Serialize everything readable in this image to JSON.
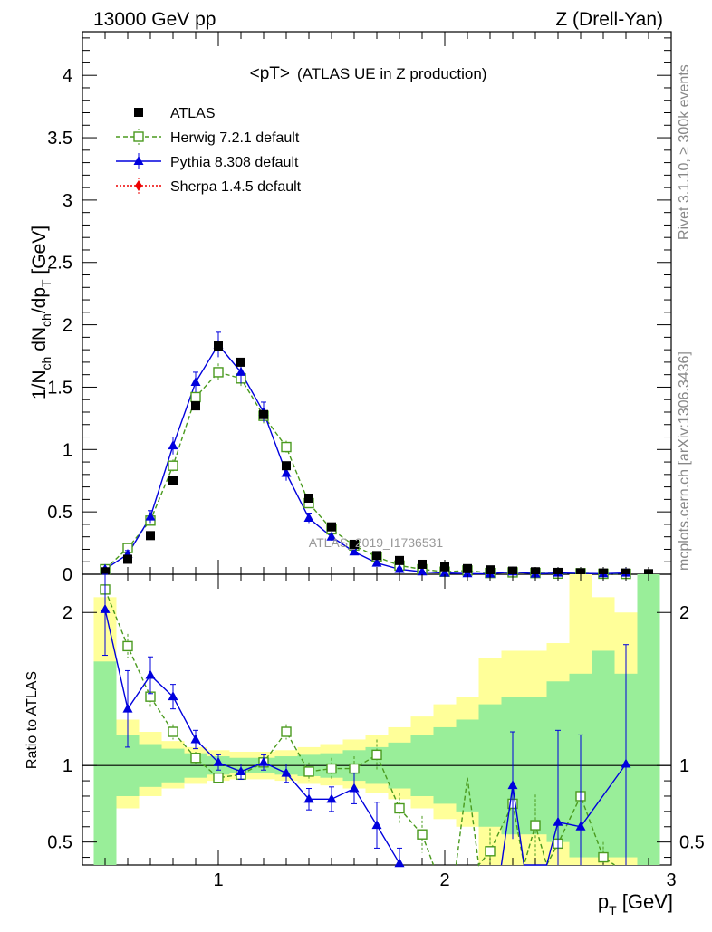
{
  "header": {
    "left": "13000 GeV pp",
    "right": "Z (Drell-Yan)"
  },
  "side": {
    "rivet": "Rivet 3.1.10, ≥ 300k events",
    "mcplots": "mcplots.cern.ch [arXiv:1306.3436]"
  },
  "chart_data": {
    "type": "line",
    "title_main": "<pT>",
    "title_sub": "(ATLAS UE in Z production)",
    "watermark": "ATLAS_2019_I1736531",
    "ylabel": "1/N_ch dN_ch/dp_T [GeV]",
    "xlabel": "p_T [GeV]",
    "ratio_ylabel": "Ratio to ATLAS",
    "xlim": [
      0.4,
      3.0
    ],
    "ylim": [
      0,
      4.35
    ],
    "ratio_ylim": [
      0.35,
      2.25
    ],
    "xticks": [
      "1",
      "2",
      "3"
    ],
    "yticks": [
      "0",
      "0.5",
      "1",
      "1.5",
      "2",
      "2.5",
      "3",
      "3.5",
      "4"
    ],
    "ratio_yticks": [
      "0.5",
      "1",
      "2"
    ],
    "legend": [
      {
        "name": "ATLAS",
        "color": "#000000",
        "marker": "square-filled",
        "line": "none"
      },
      {
        "name": "Herwig 7.2.1 default",
        "color": "#4a9a1e",
        "marker": "square-open",
        "line": "dashed"
      },
      {
        "name": "Pythia 8.308 default",
        "color": "#0000dd",
        "marker": "triangle",
        "line": "solid"
      },
      {
        "name": "Sherpa 1.4.5 default",
        "color": "#ee0000",
        "marker": "diamond",
        "line": "dotted"
      }
    ],
    "series": [
      {
        "name": "ATLAS",
        "x": [
          0.5,
          0.6,
          0.7,
          0.8,
          0.9,
          1.0,
          1.1,
          1.2,
          1.3,
          1.4,
          1.5,
          1.6,
          1.7,
          1.8,
          1.9,
          2.0,
          2.1,
          2.2,
          2.3,
          2.4,
          2.5,
          2.6,
          2.7,
          2.8,
          2.9
        ],
        "y": [
          0.02,
          0.12,
          0.31,
          0.75,
          1.35,
          1.83,
          1.7,
          1.28,
          0.87,
          0.61,
          0.38,
          0.24,
          0.15,
          0.11,
          0.08,
          0.06,
          0.045,
          0.035,
          0.025,
          0.02,
          0.015,
          0.012,
          0.01,
          0.01,
          0.005
        ]
      },
      {
        "name": "Herwig 7.2.1 default",
        "x": [
          0.5,
          0.6,
          0.7,
          0.8,
          0.9,
          1.0,
          1.1,
          1.2,
          1.3,
          1.4,
          1.5,
          1.6,
          1.7,
          1.8,
          1.9,
          2.0,
          2.1,
          2.2,
          2.3,
          2.4,
          2.5,
          2.6,
          2.7,
          2.8
        ],
        "y": [
          0.04,
          0.21,
          0.43,
          0.87,
          1.42,
          1.62,
          1.57,
          1.27,
          1.02,
          0.57,
          0.36,
          0.23,
          0.14,
          0.07,
          0.04,
          0.02,
          0.03,
          0.01,
          0.015,
          0.01,
          0.005,
          0.008,
          0.004,
          0.003
        ],
        "err": [
          0.01,
          0.03,
          0.04,
          0.05,
          0.06,
          0.07,
          0.07,
          0.06,
          0.05,
          0.04,
          0.03,
          0.02,
          0.02,
          0.01,
          0.01,
          0.01,
          0.01,
          0.01,
          0.01,
          0.01,
          0.005,
          0.005,
          0.004,
          0.003
        ]
      },
      {
        "name": "Pythia 8.308 default",
        "x": [
          0.5,
          0.6,
          0.7,
          0.8,
          0.9,
          1.0,
          1.1,
          1.2,
          1.3,
          1.4,
          1.5,
          1.6,
          1.7,
          1.8,
          1.9,
          2.0,
          2.1,
          2.2,
          2.3,
          2.4,
          2.5,
          2.6,
          2.7,
          2.8
        ],
        "y": [
          0.04,
          0.16,
          0.46,
          1.03,
          1.54,
          1.84,
          1.62,
          1.3,
          0.81,
          0.45,
          0.3,
          0.18,
          0.09,
          0.04,
          0.02,
          0.01,
          0.005,
          0.003,
          0.02,
          0.003,
          0.01,
          0.007,
          0.005,
          0.01
        ],
        "err": [
          0.01,
          0.03,
          0.05,
          0.07,
          0.08,
          0.1,
          0.09,
          0.08,
          0.06,
          0.04,
          0.03,
          0.02,
          0.01,
          0.01,
          0.005,
          0.005,
          0.003,
          0.002,
          0.01,
          0.002,
          0.005,
          0.004,
          0.003,
          0.005
        ]
      },
      {
        "name": "Sherpa 1.4.5 default",
        "x": [],
        "y": []
      }
    ],
    "ratio_series": [
      {
        "name": "Herwig 7.2.1 default",
        "x": [
          0.5,
          0.6,
          0.7,
          0.8,
          0.9,
          1.0,
          1.1,
          1.2,
          1.3,
          1.4,
          1.5,
          1.6,
          1.7,
          1.8,
          1.9,
          2.2,
          2.3,
          2.4,
          2.5,
          2.6,
          2.7
        ],
        "y": [
          2.15,
          1.78,
          1.45,
          1.22,
          1.05,
          0.92,
          0.94,
          1.02,
          1.22,
          0.96,
          0.98,
          0.98,
          1.07,
          0.72,
          0.55,
          0.44,
          0.75,
          0.61,
          0.49,
          0.8,
          0.4
        ],
        "err": [
          0.04,
          0.08,
          0.07,
          0.05,
          0.04,
          0.03,
          0.03,
          0.04,
          0.05,
          0.06,
          0.07,
          0.08,
          0.1,
          0.1,
          0.12,
          0.15,
          0.18,
          0.2,
          0.2,
          0.2,
          0.1
        ],
        "extra_lines": [
          [
            2.1,
            0.92
          ],
          [
            2.2,
            0.44
          ]
        ]
      },
      {
        "name": "Pythia 8.308 default",
        "x": [
          0.5,
          0.6,
          0.7,
          0.8,
          0.9,
          1.0,
          1.1,
          1.2,
          1.3,
          1.4,
          1.5,
          1.6,
          1.7,
          1.8
        ],
        "y": [
          2.02,
          1.37,
          1.59,
          1.45,
          1.17,
          1.02,
          0.96,
          1.02,
          0.95,
          0.78,
          0.78,
          0.85,
          0.61,
          0.36
        ],
        "err": [
          0.3,
          0.25,
          0.12,
          0.08,
          0.06,
          0.05,
          0.05,
          0.05,
          0.06,
          0.07,
          0.08,
          0.1,
          0.15,
          0.1
        ],
        "extra": {
          "x": [
            2.3,
            2.5,
            2.6,
            2.8
          ],
          "y": [
            0.87,
            0.63,
            0.6,
            1.01
          ],
          "err": [
            0.35,
            0.6,
            0.6,
            0.78
          ]
        }
      }
    ],
    "bands": {
      "x_edges": [
        0.45,
        0.55,
        0.65,
        0.75,
        0.85,
        0.95,
        1.05,
        1.15,
        1.25,
        1.35,
        1.45,
        1.55,
        1.65,
        1.75,
        1.85,
        1.95,
        2.05,
        2.15,
        2.25,
        2.35,
        2.45,
        2.55,
        2.65,
        2.75,
        2.85,
        2.95
      ],
      "green": [
        [
          0.35,
          1.68
        ],
        [
          0.8,
          1.2
        ],
        [
          0.86,
          1.14
        ],
        [
          0.89,
          1.11
        ],
        [
          0.92,
          1.08
        ],
        [
          0.94,
          1.06
        ],
        [
          0.95,
          1.05
        ],
        [
          0.95,
          1.05
        ],
        [
          0.94,
          1.06
        ],
        [
          0.93,
          1.07
        ],
        [
          0.92,
          1.08
        ],
        [
          0.9,
          1.1
        ],
        [
          0.88,
          1.12
        ],
        [
          0.85,
          1.15
        ],
        [
          0.8,
          1.2
        ],
        [
          0.75,
          1.25
        ],
        [
          0.7,
          1.3
        ],
        [
          0.6,
          1.4
        ],
        [
          0.55,
          1.45
        ],
        [
          0.55,
          1.45
        ],
        [
          0.5,
          1.55
        ],
        [
          0.4,
          1.6
        ],
        [
          0.4,
          1.75
        ],
        [
          0.4,
          1.6
        ],
        [
          0.35,
          2.25
        ]
      ],
      "yellow": [
        [
          0.35,
          2.1
        ],
        [
          0.72,
          1.3
        ],
        [
          0.8,
          1.22
        ],
        [
          0.85,
          1.16
        ],
        [
          0.88,
          1.12
        ],
        [
          0.9,
          1.1
        ],
        [
          0.91,
          1.09
        ],
        [
          0.91,
          1.09
        ],
        [
          0.9,
          1.1
        ],
        [
          0.88,
          1.12
        ],
        [
          0.87,
          1.14
        ],
        [
          0.85,
          1.17
        ],
        [
          0.82,
          1.2
        ],
        [
          0.78,
          1.25
        ],
        [
          0.72,
          1.32
        ],
        [
          0.65,
          1.4
        ],
        [
          0.6,
          1.45
        ],
        [
          0.35,
          1.7
        ],
        [
          0.35,
          1.75
        ],
        [
          0.35,
          1.75
        ],
        [
          0.35,
          1.8
        ],
        [
          0.35,
          2.25
        ],
        [
          0.35,
          2.1
        ],
        [
          0.35,
          2.0
        ],
        [
          0.35,
          2.25
        ]
      ]
    }
  }
}
